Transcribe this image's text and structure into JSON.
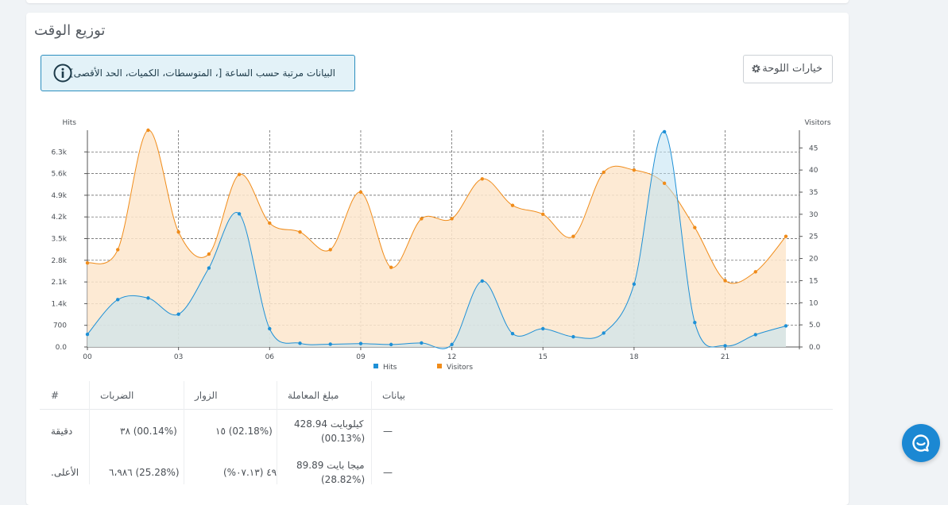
{
  "card": {
    "title": "توزيع الوقت"
  },
  "info": {
    "text": "البيانات مرتبة حسب الساعة [، المتوسطات، الكميات، الحد الأقصى]"
  },
  "panel_options": {
    "label": "خيارات اللوحة"
  },
  "colors": {
    "hits": "#1e90d6",
    "visitors": "#f08c1a",
    "hits_fill": "#bfe2f3",
    "visitors_fill": "#fde6cc"
  },
  "chart_data": {
    "type": "area",
    "x": [
      "00",
      "01",
      "02",
      "03",
      "04",
      "05",
      "06",
      "07",
      "08",
      "09",
      "10",
      "11",
      "12",
      "13",
      "14",
      "15",
      "16",
      "17",
      "18",
      "19",
      "20",
      "21",
      "22",
      "23"
    ],
    "x_tick_labels": [
      "00",
      "03",
      "06",
      "09",
      "12",
      "15",
      "18",
      "21"
    ],
    "y_left_label": "Hits",
    "y_right_label": "Visitors",
    "y_left_ticks": [
      "0.0",
      "700",
      "1.4k",
      "2.1k",
      "2.8k",
      "3.5k",
      "4.2k",
      "4.9k",
      "5.6k",
      "6.3k"
    ],
    "y_right_ticks": [
      "0.0",
      "5.0",
      "10",
      "15",
      "20",
      "25",
      "30",
      "35",
      "40",
      "45"
    ],
    "y_left_range": [
      0,
      7000
    ],
    "y_right_range": [
      0,
      49
    ],
    "series": [
      {
        "name": "Hits",
        "axis": "left",
        "values": [
          410,
          1530,
          1580,
          1060,
          2550,
          4300,
          590,
          120,
          90,
          110,
          80,
          130,
          80,
          2130,
          430,
          590,
          330,
          450,
          2030,
          6950,
          790,
          40,
          400,
          680
        ]
      },
      {
        "name": "Visitors",
        "axis": "right",
        "values": [
          19,
          22,
          49,
          26,
          21,
          39,
          28,
          26,
          22,
          35,
          18,
          29,
          29,
          38,
          32,
          30,
          25,
          39.5,
          40,
          37,
          27,
          15,
          17,
          25
        ]
      }
    ],
    "legend": [
      "Hits",
      "Visitors"
    ],
    "legend_position": "bottom"
  },
  "table": {
    "headers": [
      "#",
      "الضربات",
      "الزوار",
      "مبلغ المعاملة",
      "بيانات"
    ],
    "rows": [
      {
        "label": "دقيقة",
        "hits": "٣٨ (00.14%)",
        "visitors": "١٥ (02.18%)",
        "tx_line1": "428.94 كيلوبايت",
        "tx_line2": "(00.13%)",
        "data": "—"
      },
      {
        "label": "الأعلى.",
        "hits": "٦،٩٨٦ (25.28%)",
        "visitors": "٤٩ (٠٧.١٣%)",
        "tx_line1": "89.89 ميجا بايت",
        "tx_line2": "(28.82%)",
        "data": "—"
      }
    ]
  }
}
